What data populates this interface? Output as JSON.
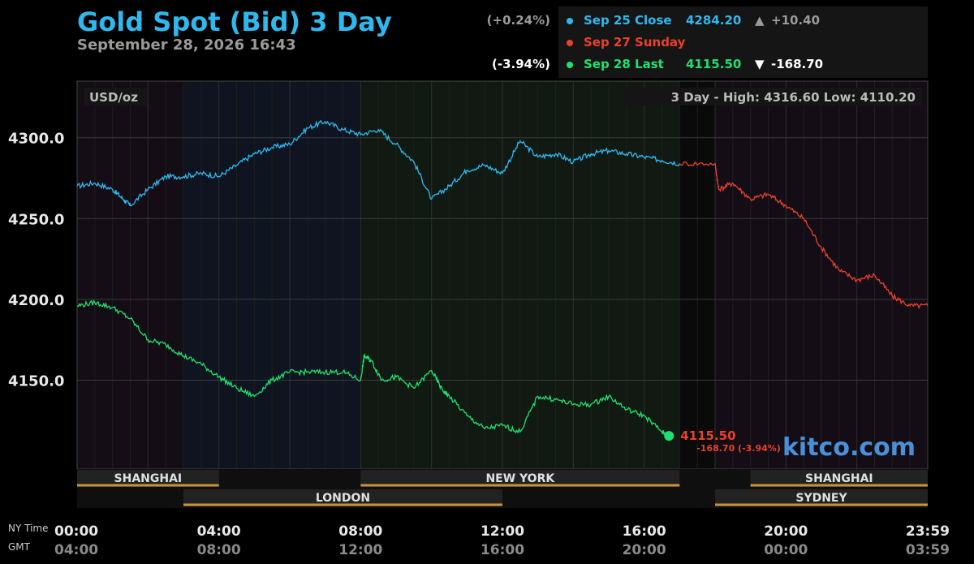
{
  "header": {
    "title": "Gold Spot (Bid) 3 Day",
    "timestamp": "September 28, 2026 16:43"
  },
  "legend": [
    {
      "label": "Sep 25 Close",
      "price": "4284.20",
      "arrow": "▲",
      "change": "+10.40",
      "pct": "(+0.24%)",
      "color": "#2fb8ee"
    },
    {
      "label": "Sep 27 Sunday",
      "price": "",
      "arrow": "",
      "change": "",
      "pct": "",
      "color": "#e8412c"
    },
    {
      "label": "Sep 28 Last",
      "price": "4115.50",
      "arrow": "▼",
      "change": "-168.70",
      "pct": "(-3.94%)",
      "color": "#1ee06e"
    }
  ],
  "chart": {
    "unit_label": "USD/oz",
    "high_low": "3 Day - High: 4316.60  Low: 4110.20",
    "last_label": "4115.50",
    "last_change": "-168.70 (-3.94%)",
    "watermark": "kitco.com",
    "time_row_label": "NY Time",
    "gmt_row_label": "GMT"
  },
  "chart_data": {
    "type": "line",
    "ylim": [
      4095,
      4335
    ],
    "y_ticks": [
      "4300.0",
      "4250.0",
      "4200.0",
      "4150.0"
    ],
    "y_tick_values": [
      4300,
      4250,
      4200,
      4150
    ],
    "xlim_hours": [
      0,
      24
    ],
    "x_ticks_ny": [
      "00:00",
      "04:00",
      "08:00",
      "12:00",
      "16:00",
      "20:00",
      "23:59"
    ],
    "x_ticks_gmt": [
      "04:00",
      "08:00",
      "12:00",
      "16:00",
      "20:00",
      "00:00",
      "03:59"
    ],
    "x_tick_hours": [
      0,
      4,
      8,
      12,
      16,
      20,
      24
    ],
    "grid": true,
    "sessions": [
      {
        "name": "SHANGHAI",
        "row": 1,
        "start": 0,
        "end": 4.0
      },
      {
        "name": "NEW YORK",
        "row": 1,
        "start": 8.0,
        "end": 17.0
      },
      {
        "name": "SHANGHAI",
        "row": 1,
        "start": 19.0,
        "end": 24
      },
      {
        "name": "LONDON",
        "row": 2,
        "start": 3.0,
        "end": 12.0
      },
      {
        "name": "SYDNEY",
        "row": 2,
        "start": 18.0,
        "end": 24
      }
    ],
    "series": [
      {
        "name": "Sep 25 Close",
        "color": "#2fb8ee",
        "x": [
          0,
          0.5,
          1,
          1.3,
          1.5,
          2,
          2.5,
          3,
          3.5,
          4,
          4.5,
          5,
          5.5,
          6,
          6.5,
          7,
          7.5,
          8,
          8.5,
          9,
          9.5,
          10,
          10.5,
          11,
          11.5,
          12,
          12.5,
          13,
          13.5,
          14,
          14.5,
          15,
          15.5,
          16,
          16.5,
          17
        ],
        "y": [
          4270,
          4272,
          4268,
          4262,
          4258,
          4268,
          4276,
          4276,
          4278,
          4276,
          4283,
          4290,
          4294,
          4296,
          4306,
          4310,
          4305,
          4302,
          4305,
          4296,
          4285,
          4262,
          4270,
          4280,
          4283,
          4278,
          4298,
          4288,
          4290,
          4285,
          4290,
          4292,
          4290,
          4288,
          4286,
          4284
        ]
      },
      {
        "name": "Sep 27 Sunday",
        "color": "#e8412c",
        "x": [
          17,
          18,
          18.1,
          18.5,
          19,
          19.5,
          20,
          20.5,
          21,
          21.5,
          22,
          22.5,
          23,
          23.5,
          24
        ],
        "y": [
          4284,
          4284,
          4268,
          4272,
          4262,
          4265,
          4258,
          4250,
          4232,
          4218,
          4212,
          4215,
          4202,
          4196,
          4196
        ]
      },
      {
        "name": "Sep 28 Last",
        "color": "#1ee06e",
        "x": [
          0,
          0.5,
          1,
          1.5,
          2,
          2.5,
          3,
          3.5,
          4,
          4.5,
          5,
          5.5,
          6,
          6.5,
          7,
          7.5,
          8,
          8.1,
          8.3,
          8.6,
          9,
          9.5,
          10,
          10.3,
          10.5,
          11,
          11.5,
          12,
          12.5,
          13,
          13.5,
          14,
          14.5,
          15,
          15.5,
          16,
          16.5,
          16.7
        ],
        "y": [
          4196,
          4198,
          4195,
          4188,
          4175,
          4172,
          4165,
          4160,
          4152,
          4145,
          4140,
          4150,
          4155,
          4155,
          4155,
          4155,
          4150,
          4165,
          4162,
          4150,
          4152,
          4145,
          4156,
          4144,
          4140,
          4128,
          4120,
          4122,
          4118,
          4140,
          4138,
          4135,
          4135,
          4140,
          4132,
          4128,
          4118,
          4115.5
        ]
      }
    ]
  }
}
